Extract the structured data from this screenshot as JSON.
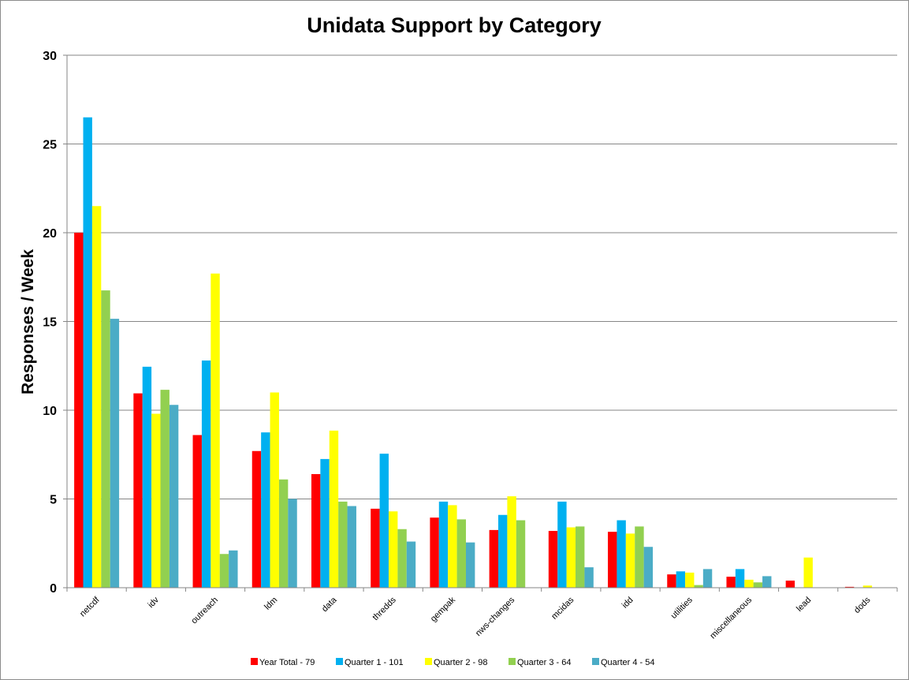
{
  "chart_data": {
    "type": "bar",
    "title": "Unidata Support by Category",
    "xlabel": "",
    "ylabel": "Responses / Week",
    "ylim": [
      0,
      30
    ],
    "yticks": [
      0,
      5,
      10,
      15,
      20,
      25,
      30
    ],
    "grid": true,
    "legend_position": "bottom",
    "categories": [
      "netcdf",
      "idv",
      "outreach",
      "ldm",
      "data",
      "thredds",
      "gempak",
      "nws-changes",
      "mcidas",
      "idd",
      "utilities",
      "miscellaneous",
      "lead",
      "dods"
    ],
    "series": [
      {
        "name": "Year Total  - 79",
        "color": "#ff0000",
        "values": [
          20.0,
          10.95,
          8.6,
          7.7,
          6.4,
          4.45,
          3.95,
          3.25,
          3.2,
          3.15,
          0.75,
          0.62,
          0.4,
          0.05
        ]
      },
      {
        "name": "Quarter 1 - 101",
        "color": "#00b0f0",
        "values": [
          26.5,
          12.45,
          12.8,
          8.75,
          7.25,
          7.55,
          4.85,
          4.1,
          4.85,
          3.8,
          0.92,
          1.05,
          0.0,
          0.0
        ]
      },
      {
        "name": "Quarter 2 - 98",
        "color": "#ffff00",
        "values": [
          21.5,
          9.8,
          17.7,
          11.0,
          8.85,
          4.3,
          4.65,
          5.15,
          3.4,
          3.05,
          0.85,
          0.45,
          1.7,
          0.12
        ]
      },
      {
        "name": "Quarter 3 - 64",
        "color": "#92d050",
        "values": [
          16.75,
          11.15,
          1.9,
          6.1,
          4.85,
          3.3,
          3.85,
          3.8,
          3.45,
          3.45,
          0.15,
          0.3,
          0.0,
          0.0
        ]
      },
      {
        "name": "Quarter 4 - 54",
        "color": "#4bacc6",
        "values": [
          15.15,
          10.3,
          2.1,
          5.0,
          4.6,
          2.6,
          2.55,
          0.0,
          1.15,
          2.3,
          1.05,
          0.65,
          0.0,
          0.0
        ]
      }
    ]
  }
}
